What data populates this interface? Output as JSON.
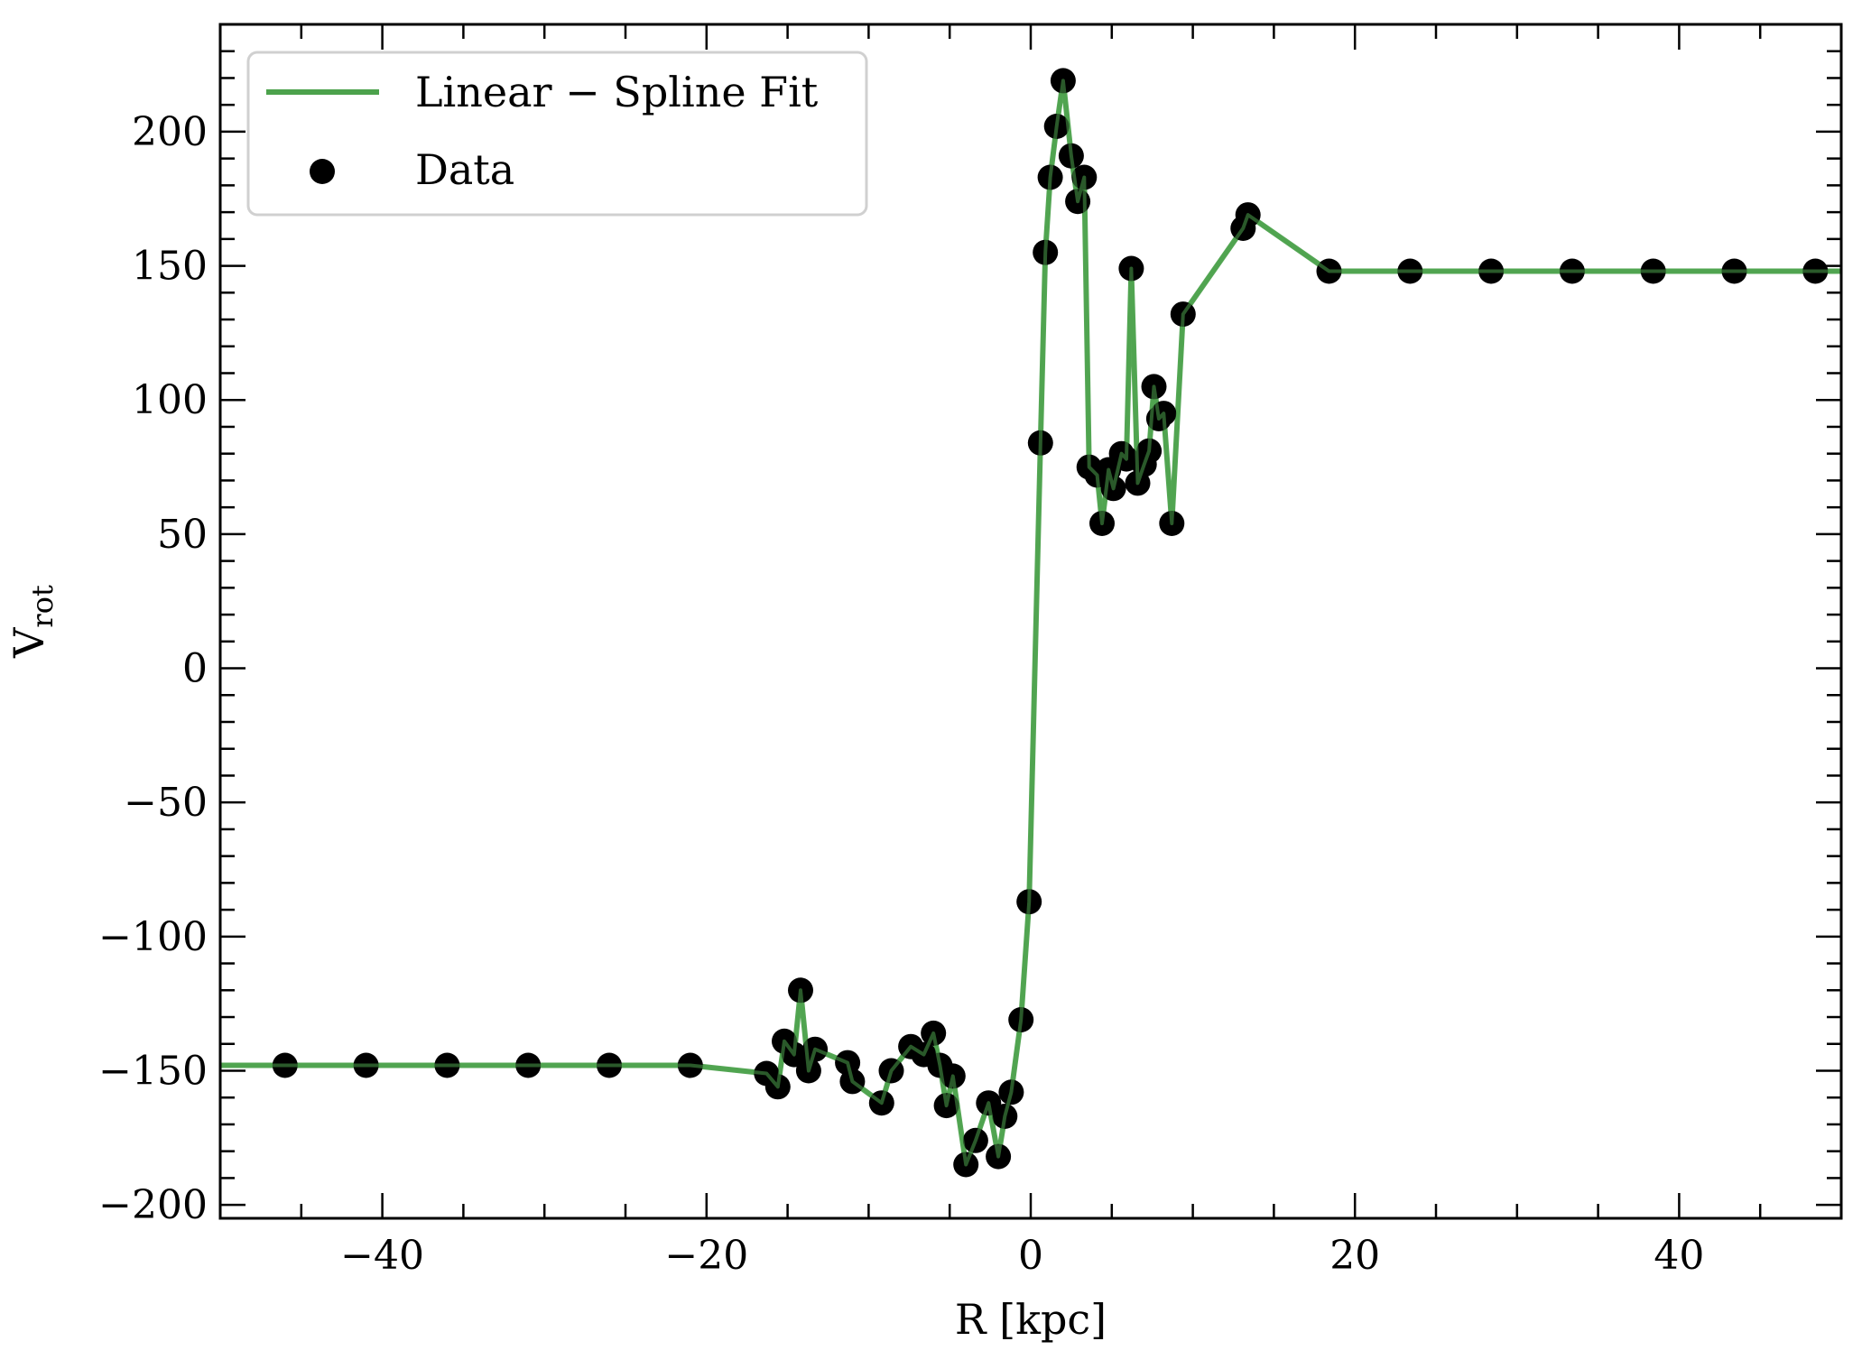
{
  "chart_data": {
    "type": "line",
    "xlabel": "R [kpc]",
    "ylabel_main": "V",
    "ylabel_sub": "rot",
    "xlim": [
      -50,
      50
    ],
    "ylim": [
      -205,
      240
    ],
    "x_ticks": [
      -40,
      -20,
      0,
      20,
      40
    ],
    "x_tick_labels": [
      "−40",
      "−20",
      "0",
      "20",
      "40"
    ],
    "y_ticks": [
      -200,
      -150,
      -100,
      -50,
      0,
      50,
      100,
      150,
      200
    ],
    "y_tick_labels": [
      "−200",
      "−150",
      "−100",
      "−50",
      "0",
      "50",
      "100",
      "150",
      "200"
    ],
    "legend_position": "top-left",
    "grid": false,
    "series": [
      {
        "name": "Linear − Spline Fit",
        "kind": "line",
        "color": "#4ca24c",
        "points": [
          [
            -50,
            -148
          ],
          [
            -46,
            -148
          ],
          [
            -41,
            -148
          ],
          [
            -36,
            -148
          ],
          [
            -31,
            -148
          ],
          [
            -26,
            -148
          ],
          [
            -21,
            -148
          ],
          [
            -16.3,
            -151
          ],
          [
            -15.6,
            -156
          ],
          [
            -15.2,
            -139
          ],
          [
            -14.6,
            -144
          ],
          [
            -14.2,
            -120
          ],
          [
            -13.7,
            -150
          ],
          [
            -13.3,
            -142
          ],
          [
            -11.3,
            -147
          ],
          [
            -11.0,
            -154
          ],
          [
            -9.2,
            -162
          ],
          [
            -8.6,
            -150
          ],
          [
            -7.4,
            -141
          ],
          [
            -6.6,
            -144
          ],
          [
            -6.0,
            -136
          ],
          [
            -5.6,
            -148
          ],
          [
            -5.2,
            -163
          ],
          [
            -4.8,
            -152
          ],
          [
            -4.0,
            -185
          ],
          [
            -3.4,
            -176
          ],
          [
            -2.6,
            -162
          ],
          [
            -2.0,
            -182
          ],
          [
            -1.6,
            -167
          ],
          [
            -1.2,
            -158
          ],
          [
            -0.6,
            -131
          ],
          [
            -0.1,
            -87
          ],
          [
            0.6,
            84
          ],
          [
            0.9,
            155
          ],
          [
            1.2,
            183
          ],
          [
            1.6,
            202
          ],
          [
            2.0,
            219
          ],
          [
            2.5,
            191
          ],
          [
            2.9,
            174
          ],
          [
            3.3,
            183
          ],
          [
            3.6,
            75
          ],
          [
            4.1,
            72
          ],
          [
            4.4,
            54
          ],
          [
            4.8,
            74
          ],
          [
            5.1,
            67
          ],
          [
            5.6,
            80
          ],
          [
            5.9,
            78
          ],
          [
            6.2,
            149
          ],
          [
            6.6,
            69
          ],
          [
            7.0,
            76
          ],
          [
            7.3,
            81
          ],
          [
            7.6,
            105
          ],
          [
            7.9,
            93
          ],
          [
            8.2,
            95
          ],
          [
            8.7,
            54
          ],
          [
            9.4,
            132
          ],
          [
            13.1,
            164
          ],
          [
            13.4,
            169
          ],
          [
            18.4,
            148
          ],
          [
            23.4,
            148
          ],
          [
            28.4,
            148
          ],
          [
            33.4,
            148
          ],
          [
            38.4,
            148
          ],
          [
            43.4,
            148
          ],
          [
            48.4,
            148
          ],
          [
            50,
            148
          ]
        ]
      },
      {
        "name": "Data",
        "kind": "scatter",
        "color": "#000000",
        "points": [
          [
            -46,
            -148
          ],
          [
            -41,
            -148
          ],
          [
            -36,
            -148
          ],
          [
            -31,
            -148
          ],
          [
            -26,
            -148
          ],
          [
            -21,
            -148
          ],
          [
            -16.3,
            -151
          ],
          [
            -15.6,
            -156
          ],
          [
            -15.2,
            -139
          ],
          [
            -14.6,
            -144
          ],
          [
            -14.2,
            -120
          ],
          [
            -13.7,
            -150
          ],
          [
            -13.3,
            -142
          ],
          [
            -11.3,
            -147
          ],
          [
            -11.0,
            -154
          ],
          [
            -9.2,
            -162
          ],
          [
            -8.6,
            -150
          ],
          [
            -7.4,
            -141
          ],
          [
            -6.6,
            -144
          ],
          [
            -6.0,
            -136
          ],
          [
            -5.6,
            -148
          ],
          [
            -5.2,
            -163
          ],
          [
            -4.8,
            -152
          ],
          [
            -4.0,
            -185
          ],
          [
            -3.4,
            -176
          ],
          [
            -2.6,
            -162
          ],
          [
            -2.0,
            -182
          ],
          [
            -1.6,
            -167
          ],
          [
            -1.2,
            -158
          ],
          [
            -0.6,
            -131
          ],
          [
            -0.1,
            -87
          ],
          [
            0.6,
            84
          ],
          [
            0.9,
            155
          ],
          [
            1.2,
            183
          ],
          [
            1.6,
            202
          ],
          [
            2.0,
            219
          ],
          [
            2.5,
            191
          ],
          [
            2.9,
            174
          ],
          [
            3.3,
            183
          ],
          [
            3.6,
            75
          ],
          [
            4.1,
            72
          ],
          [
            4.4,
            54
          ],
          [
            4.8,
            74
          ],
          [
            5.1,
            67
          ],
          [
            5.6,
            80
          ],
          [
            5.9,
            78
          ],
          [
            6.2,
            149
          ],
          [
            6.6,
            69
          ],
          [
            7.0,
            76
          ],
          [
            7.3,
            81
          ],
          [
            7.6,
            105
          ],
          [
            7.9,
            93
          ],
          [
            8.2,
            95
          ],
          [
            8.7,
            54
          ],
          [
            9.4,
            132
          ],
          [
            13.1,
            164
          ],
          [
            13.4,
            169
          ],
          [
            18.4,
            148
          ],
          [
            23.4,
            148
          ],
          [
            28.4,
            148
          ],
          [
            33.4,
            148
          ],
          [
            38.4,
            148
          ],
          [
            43.4,
            148
          ],
          [
            48.4,
            148
          ]
        ]
      }
    ]
  }
}
